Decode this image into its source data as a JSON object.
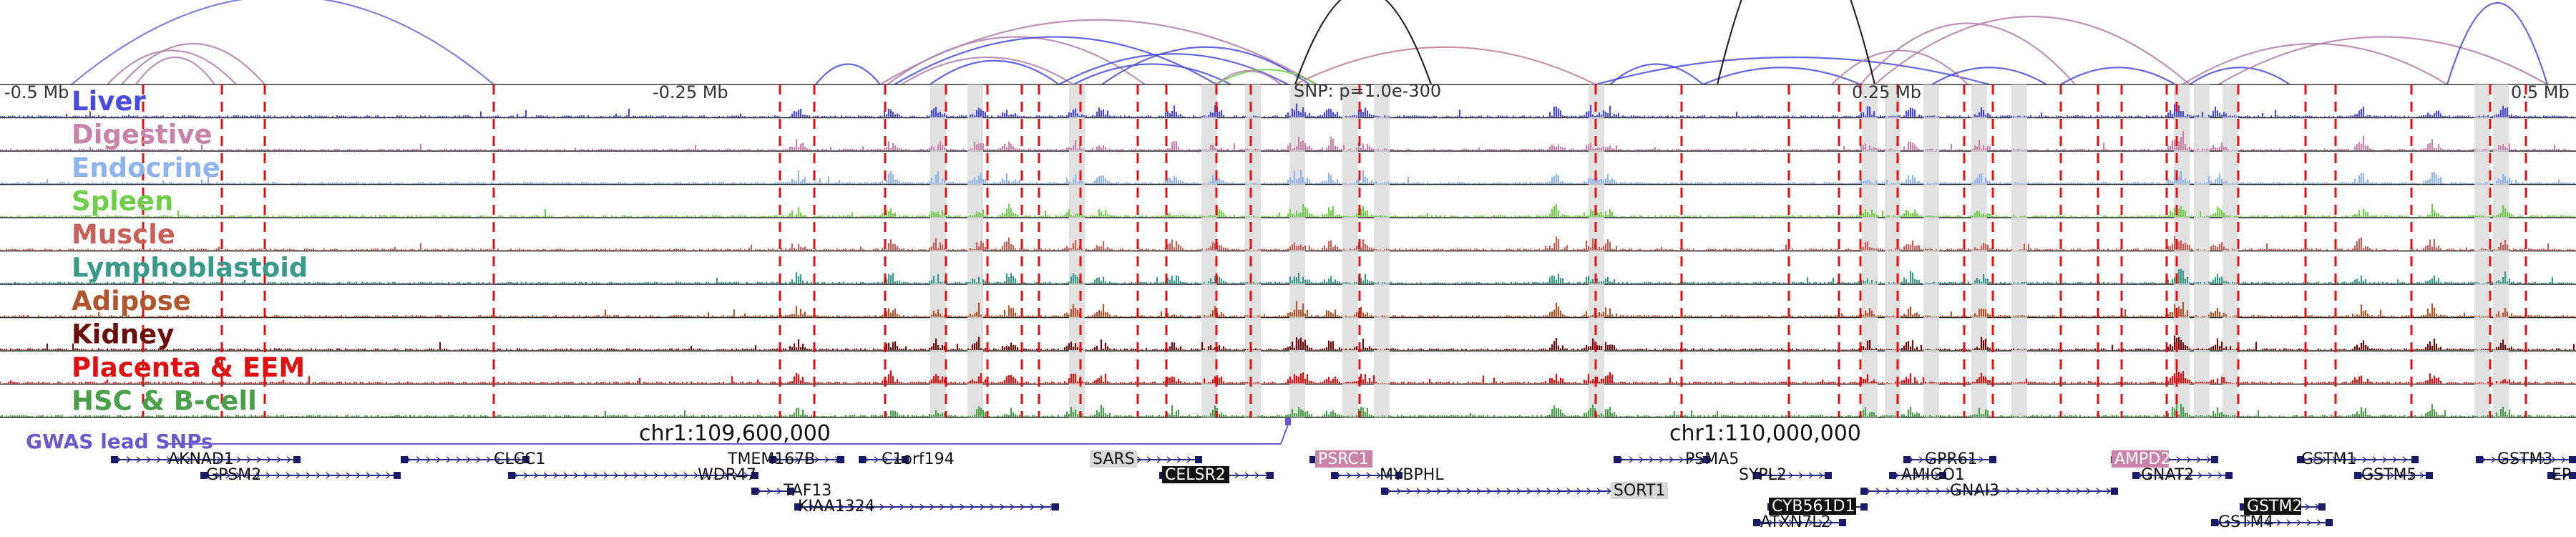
{
  "axis": {
    "left_label": "-0.5 Mb",
    "mid_left_label": "-0.25 Mb",
    "snp_label": "SNP: p=1.0e-300",
    "mid_right_label": "0.25 Mb",
    "right_label": "0.5 Mb"
  },
  "tracks": [
    {
      "name": "Liver",
      "color": "#4a4adf"
    },
    {
      "name": "Digestive",
      "color": "#c983a8"
    },
    {
      "name": "Endocrine",
      "color": "#8fb3ef"
    },
    {
      "name": "Spleen",
      "color": "#6fcf4a"
    },
    {
      "name": "Muscle",
      "color": "#c8605a"
    },
    {
      "name": "Lymphoblastoid",
      "color": "#3a9a8a"
    },
    {
      "name": "Adipose",
      "color": "#b0552c"
    },
    {
      "name": "Kidney",
      "color": "#6b0d0d"
    },
    {
      "name": "Placenta & EEM",
      "color": "#e01010"
    },
    {
      "name": "HSC & B-cell",
      "color": "#4aa04a"
    }
  ],
  "gwas": {
    "label": "GWAS lead SNPs",
    "color": "#6a5acd",
    "coord_left": "chr1:109,600,000",
    "coord_right": "chr1:110,000,000"
  },
  "genes": {
    "row1": [
      "AKNAD1",
      "CLCC1",
      "TMEM167B",
      "C1orf194",
      "SARS",
      "PSRC1",
      "PSMA5",
      "GPR61",
      "AMPD2",
      "GSTM1",
      "GSTM3"
    ],
    "row2": [
      "GPSM2",
      "WDR47",
      "CELSR2",
      "MYBPHL",
      "SYPL2",
      "AMIGO1",
      "GNAT2",
      "GSTM5",
      "EP"
    ],
    "row3": [
      "TAF13",
      "SORT1",
      "GNAI3"
    ],
    "row4": [
      "KIAA1324",
      "CYB561D1",
      "GSTM2"
    ],
    "row5": [
      "ATXN7L2",
      "GSTM4"
    ]
  }
}
